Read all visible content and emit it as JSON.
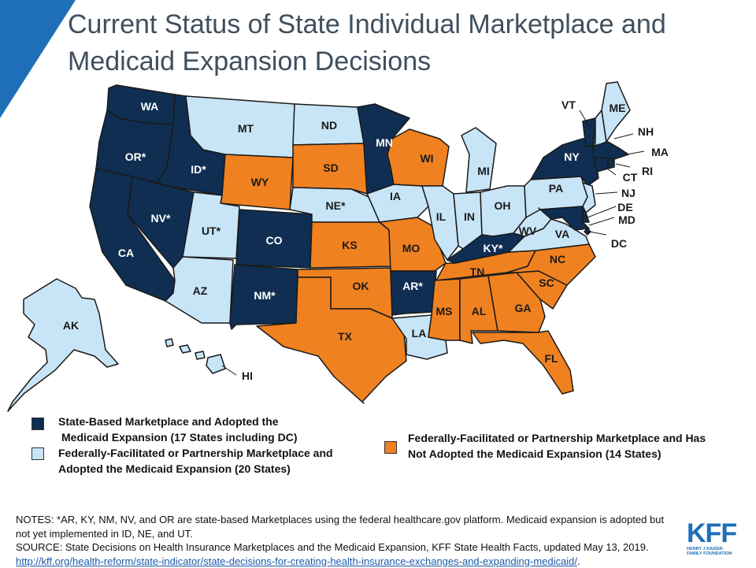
{
  "title": "Current Status of State Individual Marketplace and Medicaid Expansion Decisions",
  "colors": {
    "sbm_expansion": "#0f2e52",
    "ffm_expansion": "#c8e5f7",
    "ffm_no_expansion": "#f08120",
    "accent_corner": "#1e6fb8",
    "border": "#1a1a1a"
  },
  "legend": {
    "sbm_line1": "State-Based Marketplace and Adopted the",
    "sbm_line2": "Medicaid Expansion (17 States including DC)",
    "ffm_exp_line1": "Federally-Facilitated or Partnership Marketplace and",
    "ffm_exp_line2": "Adopted the Medicaid Expansion (20 States)",
    "ffm_noexp_line1": "Federally-Facilitated or Partnership Marketplace and Has",
    "ffm_noexp_line2": "Not Adopted the Medicaid Expansion (14 States)"
  },
  "states": {
    "WA": "WA",
    "OR": "OR*",
    "CA": "CA",
    "ID": "ID*",
    "NV": "NV*",
    "MT": "MT",
    "WY": "WY",
    "UT": "UT*",
    "AZ": "AZ",
    "CO": "CO",
    "NM": "NM*",
    "ND": "ND",
    "SD": "SD",
    "NE": "NE*",
    "KS": "KS",
    "OK": "OK",
    "TX": "TX",
    "MN": "MN",
    "IA": "IA",
    "MO": "MO",
    "AR": "AR*",
    "LA": "LA",
    "WI": "WI",
    "IL": "IL",
    "MI": "MI",
    "IN": "IN",
    "OH": "OH",
    "KY": "KY*",
    "TN": "TN",
    "MS": "MS",
    "AL": "AL",
    "GA": "GA",
    "FL": "FL",
    "SC": "SC",
    "NC": "NC",
    "VA": "VA",
    "WV": "WV",
    "PA": "PA",
    "NY": "NY",
    "VT": "VT",
    "NH": "NH",
    "ME": "ME",
    "MA": "MA",
    "RI": "RI",
    "CT": "CT",
    "NJ": "NJ",
    "DE": "DE",
    "MD": "MD",
    "DC": "DC",
    "AK": "AK",
    "HI": "HI"
  },
  "notes": {
    "line1": "NOTES: *AR, KY, NM, NV, and OR are state-based Marketplaces using the federal healthcare.gov platform. Medicaid expansion is adopted but not yet implemented in ID, NE, and UT.",
    "source": "SOURCE: State Decisions on Health Insurance Marketplaces and the Medicaid Expansion, KFF State Health Facts, updated May 13, 2019.",
    "link": "http://kff.org/health-reform/state-indicator/state-decisions-for-creating-health-insurance-exchanges-and-expanding-medicaid/",
    "link_end": "."
  },
  "logo": {
    "word": "KFF",
    "sub1": "HENRY J KAISER",
    "sub2": "FAMILY FOUNDATION"
  }
}
